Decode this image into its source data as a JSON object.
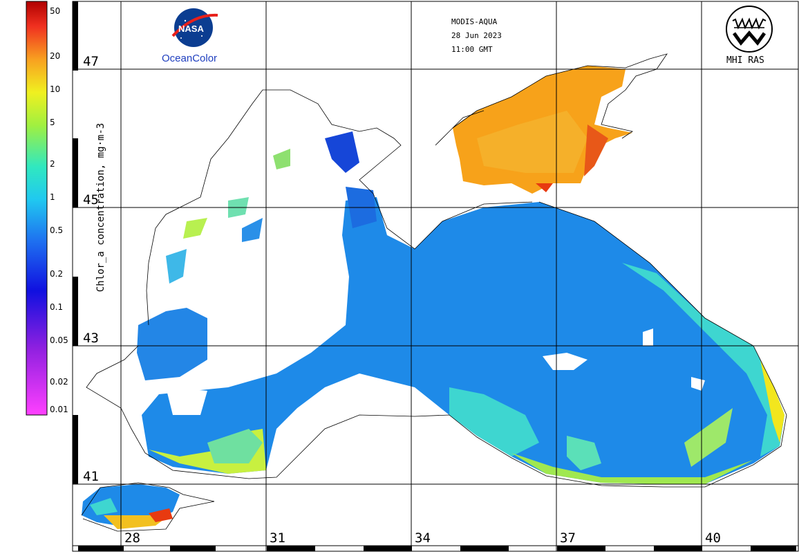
{
  "header": {
    "sensor": "MODIS-AQUA",
    "date": "28 Jun 2023",
    "time": "11:00 GMT"
  },
  "logos": {
    "nasa_text": "NASA",
    "oceancolor_text": "OceanColor",
    "mhi_text": "MHI RAS"
  },
  "colorbar": {
    "title": "Chlor_a concentration, mg·m-3",
    "ticks": [
      "50",
      "20",
      "10",
      "5",
      "2",
      "1",
      "0.5",
      "0.2",
      "0.1",
      "0.05",
      "0.02",
      "0.01"
    ]
  },
  "map": {
    "lat_labels": [
      "47",
      "45",
      "43",
      "41"
    ],
    "lon_labels": [
      "28",
      "31",
      "34",
      "37",
      "40"
    ]
  },
  "colors": {
    "high": "#e83a10",
    "mid_high": "#f7a21a",
    "mid": "#f2e61e",
    "low_mid": "#3ed6d0",
    "low": "#1e8ae8",
    "very_low": "#1646d8"
  }
}
